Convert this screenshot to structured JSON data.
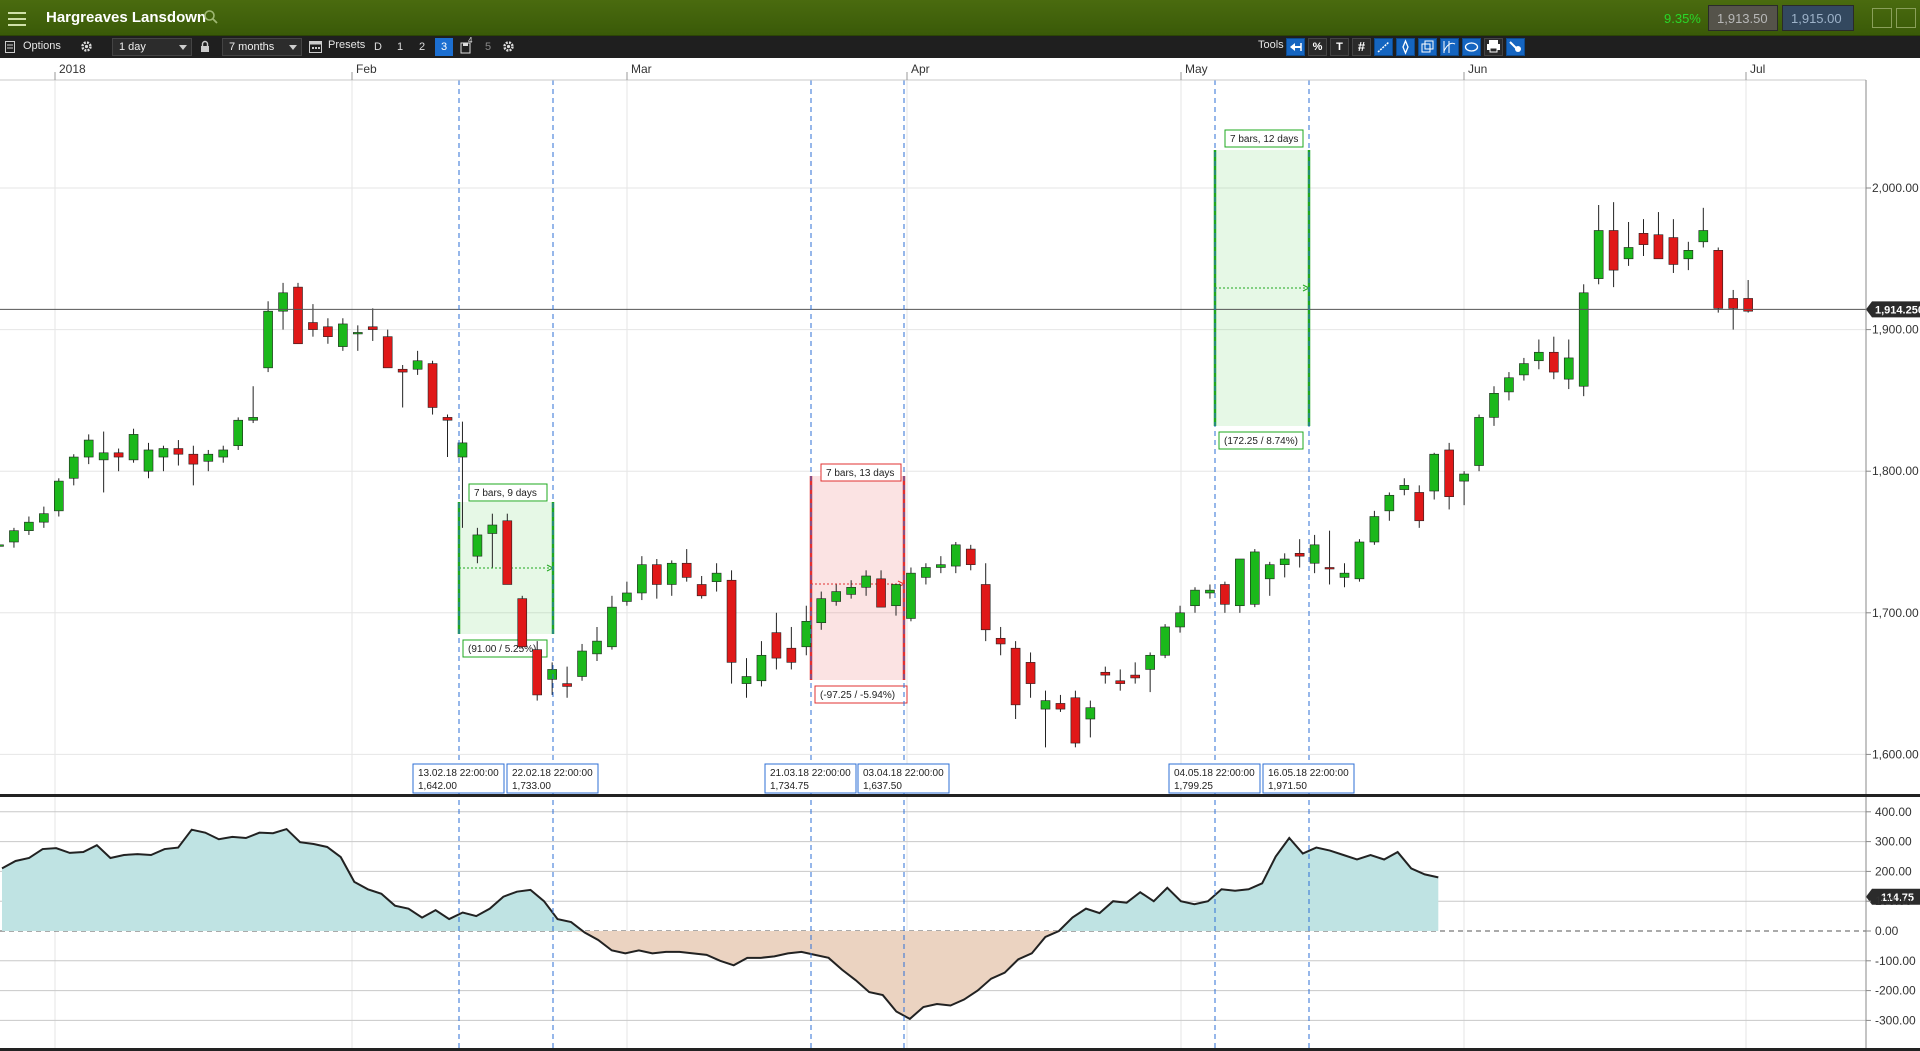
{
  "window": {
    "title": "Hargreaves Lansdown"
  },
  "quote": {
    "change": "9.35%",
    "bid": "1,913.50",
    "ask": "1,915.00"
  },
  "toolbar": {
    "options_label": "Options",
    "interval": "1 day",
    "range": "7 months",
    "presets_label": "Presets",
    "presets": [
      "D",
      "1",
      "2",
      "3",
      "4",
      "5"
    ],
    "active_preset": "3",
    "tools_label": "Tools",
    "tool_percent": "%",
    "tool_text": "T"
  },
  "chart_data": {
    "type": "candlestick",
    "x_labels": [
      "2018",
      "Feb",
      "Mar",
      "Apr",
      "May",
      "Jun",
      "Jul"
    ],
    "price_axis": {
      "ticks": [
        "2,000.00",
        "1,900.00",
        "1,800.00",
        "1,700.00",
        "1,600.00"
      ],
      "current_price": "1,914.250"
    },
    "indicator_axis": {
      "ticks": [
        "400.00",
        "300.00",
        "200.00",
        "100.00",
        "0.00",
        "-100.00",
        "-200.00",
        "-300.00"
      ],
      "current_value": "114.75"
    },
    "candles": [
      [
        1748,
        1752,
        1738,
        1748
      ],
      [
        1750,
        1760,
        1746,
        1758
      ],
      [
        1758,
        1768,
        1755,
        1764
      ],
      [
        1764,
        1775,
        1760,
        1770
      ],
      [
        1772,
        1795,
        1768,
        1793
      ],
      [
        1795,
        1812,
        1790,
        1810
      ],
      [
        1810,
        1826,
        1805,
        1822
      ],
      [
        1808,
        1828,
        1785,
        1813
      ],
      [
        1813,
        1816,
        1800,
        1810
      ],
      [
        1808,
        1830,
        1806,
        1826
      ],
      [
        1800,
        1820,
        1795,
        1815
      ],
      [
        1810,
        1818,
        1800,
        1816
      ],
      [
        1816,
        1822,
        1804,
        1812
      ],
      [
        1812,
        1818,
        1790,
        1805
      ],
      [
        1807,
        1815,
        1800,
        1812
      ],
      [
        1810,
        1818,
        1806,
        1815
      ],
      [
        1818,
        1838,
        1815,
        1836
      ],
      [
        1836,
        1860,
        1834,
        1838
      ],
      [
        1873,
        1920,
        1870,
        1913
      ],
      [
        1913,
        1933,
        1900,
        1926
      ],
      [
        1930,
        1933,
        1890,
        1890
      ],
      [
        1905,
        1918,
        1895,
        1900
      ],
      [
        1902,
        1908,
        1890,
        1895
      ],
      [
        1888,
        1908,
        1885,
        1904
      ],
      [
        1897,
        1903,
        1885,
        1898
      ],
      [
        1902,
        1915,
        1892,
        1900
      ],
      [
        1895,
        1900,
        1873,
        1873
      ],
      [
        1872,
        1875,
        1845,
        1870
      ],
      [
        1872,
        1885,
        1868,
        1878
      ],
      [
        1876,
        1878,
        1840,
        1845
      ],
      [
        1838,
        1840,
        1810,
        1836
      ],
      [
        1810,
        1835,
        1760,
        1820
      ],
      [
        1740,
        1760,
        1735,
        1755
      ],
      [
        1756,
        1770,
        1732,
        1762
      ],
      [
        1765,
        1770,
        1720,
        1720
      ],
      [
        1710,
        1712,
        1675,
        1676
      ],
      [
        1674,
        1680,
        1638,
        1642
      ],
      [
        1653,
        1665,
        1642,
        1660
      ],
      [
        1650,
        1662,
        1640,
        1648
      ],
      [
        1655,
        1678,
        1652,
        1673
      ],
      [
        1671,
        1690,
        1666,
        1680
      ],
      [
        1676,
        1712,
        1674,
        1704
      ],
      [
        1708,
        1722,
        1705,
        1714
      ],
      [
        1714,
        1740,
        1709,
        1734
      ],
      [
        1734,
        1738,
        1710,
        1720
      ],
      [
        1720,
        1737,
        1712,
        1735
      ],
      [
        1735,
        1745,
        1722,
        1725
      ],
      [
        1720,
        1726,
        1710,
        1712
      ],
      [
        1722,
        1735,
        1715,
        1728
      ],
      [
        1723,
        1730,
        1650,
        1665
      ],
      [
        1650,
        1668,
        1640,
        1655
      ],
      [
        1652,
        1680,
        1648,
        1670
      ],
      [
        1686,
        1700,
        1660,
        1668
      ],
      [
        1675,
        1690,
        1660,
        1665
      ],
      [
        1676,
        1705,
        1670,
        1694
      ],
      [
        1693,
        1715,
        1688,
        1710
      ],
      [
        1708,
        1720,
        1705,
        1715
      ],
      [
        1713,
        1723,
        1710,
        1718
      ],
      [
        1718,
        1730,
        1712,
        1726
      ],
      [
        1724,
        1730,
        1704,
        1704
      ],
      [
        1705,
        1720,
        1698,
        1720
      ],
      [
        1696,
        1732,
        1694,
        1728
      ],
      [
        1725,
        1735,
        1720,
        1732
      ],
      [
        1732,
        1740,
        1728,
        1734
      ],
      [
        1733,
        1750,
        1728,
        1748
      ],
      [
        1745,
        1748,
        1730,
        1734
      ],
      [
        1720,
        1735,
        1680,
        1688
      ],
      [
        1682,
        1690,
        1670,
        1678
      ],
      [
        1675,
        1680,
        1625,
        1635
      ],
      [
        1665,
        1672,
        1640,
        1650
      ],
      [
        1632,
        1645,
        1605,
        1638
      ],
      [
        1636,
        1642,
        1630,
        1632
      ],
      [
        1640,
        1645,
        1605,
        1608
      ],
      [
        1625,
        1638,
        1612,
        1633
      ],
      [
        1658,
        1662,
        1650,
        1656
      ],
      [
        1652,
        1660,
        1645,
        1650
      ],
      [
        1656,
        1665,
        1650,
        1654
      ],
      [
        1660,
        1672,
        1644,
        1670
      ],
      [
        1670,
        1692,
        1668,
        1690
      ],
      [
        1690,
        1705,
        1686,
        1700
      ],
      [
        1705,
        1718,
        1700,
        1716
      ],
      [
        1714,
        1720,
        1710,
        1716
      ],
      [
        1720,
        1722,
        1700,
        1706
      ],
      [
        1705,
        1735,
        1700,
        1738
      ],
      [
        1706,
        1745,
        1704,
        1743
      ],
      [
        1724,
        1736,
        1712,
        1734
      ],
      [
        1734,
        1742,
        1725,
        1738
      ],
      [
        1742,
        1752,
        1732,
        1740
      ],
      [
        1735,
        1755,
        1728,
        1748
      ],
      [
        1732,
        1758,
        1720,
        1731
      ],
      [
        1725,
        1735,
        1718,
        1728
      ],
      [
        1724,
        1752,
        1722,
        1750
      ],
      [
        1750,
        1772,
        1748,
        1768
      ],
      [
        1772,
        1785,
        1765,
        1783
      ],
      [
        1787,
        1795,
        1783,
        1790
      ],
      [
        1785,
        1790,
        1760,
        1765
      ],
      [
        1786,
        1813,
        1780,
        1812
      ],
      [
        1815,
        1820,
        1773,
        1782
      ],
      [
        1793,
        1800,
        1776,
        1798
      ],
      [
        1804,
        1840,
        1800,
        1838
      ],
      [
        1838,
        1860,
        1832,
        1855
      ],
      [
        1856,
        1870,
        1850,
        1866
      ],
      [
        1868,
        1880,
        1864,
        1876
      ],
      [
        1878,
        1893,
        1872,
        1884
      ],
      [
        1884,
        1895,
        1865,
        1870
      ],
      [
        1865,
        1893,
        1858,
        1880
      ],
      [
        1860,
        1932,
        1853,
        1926
      ],
      [
        1936,
        1988,
        1932,
        1970
      ],
      [
        1970,
        1990,
        1930,
        1942
      ],
      [
        1950,
        1976,
        1945,
        1958
      ],
      [
        1968,
        1978,
        1952,
        1960
      ],
      [
        1967,
        1983,
        1952,
        1950
      ],
      [
        1965,
        1978,
        1940,
        1946
      ],
      [
        1950,
        1962,
        1942,
        1956
      ],
      [
        1962,
        1986,
        1958,
        1970
      ],
      [
        1956,
        1958,
        1912,
        1915
      ],
      [
        1922,
        1928,
        1900,
        1915
      ],
      [
        1922,
        1935,
        1912,
        1913
      ]
    ],
    "ranges": [
      {
        "label": "7 bars, 9 days",
        "result": "(91.00 / 5.25%)",
        "direction": "up",
        "start": "13.02.18 22:00:00",
        "start_value": "1,642.00",
        "end": "22.02.18 22:00:00",
        "end_value": "1,733.00"
      },
      {
        "label": "7 bars, 13 days",
        "result": "(-97.25 / -5.94%)",
        "direction": "down",
        "start": "21.03.18 22:00:00",
        "start_value": "1,734.75",
        "end": "03.04.18 22:00:00",
        "end_value": "1,637.50"
      },
      {
        "label": "7 bars, 12 days",
        "result": "(172.25 / 8.74%)",
        "direction": "up",
        "start": "04.05.18 22:00:00",
        "start_value": "1,799.25",
        "end": "16.05.18 22:00:00",
        "end_value": "1,971.50"
      }
    ],
    "indicator": [
      210,
      235,
      245,
      275,
      278,
      262,
      265,
      288,
      245,
      255,
      258,
      255,
      275,
      280,
      340,
      330,
      308,
      316,
      312,
      330,
      328,
      342,
      298,
      292,
      282,
      248,
      165,
      140,
      125,
      85,
      75,
      45,
      70,
      40,
      62,
      50,
      75,
      115,
      132,
      138,
      100,
      40,
      30,
      -5,
      -30,
      -65,
      -75,
      -65,
      -75,
      -70,
      -70,
      -75,
      -80,
      -100,
      -115,
      -90,
      -90,
      -85,
      -75,
      -70,
      -80,
      -90,
      -130,
      -165,
      -205,
      -215,
      -270,
      -295,
      -255,
      -245,
      -250,
      -230,
      -200,
      -160,
      -140,
      -95,
      -75,
      -20,
      0,
      45,
      75,
      60,
      100,
      95,
      130,
      100,
      145,
      100,
      90,
      100,
      140,
      135,
      140,
      160,
      250,
      312,
      260,
      280,
      270,
      255,
      240,
      255,
      240,
      265,
      210,
      190,
      180
    ],
    "grid": true
  }
}
